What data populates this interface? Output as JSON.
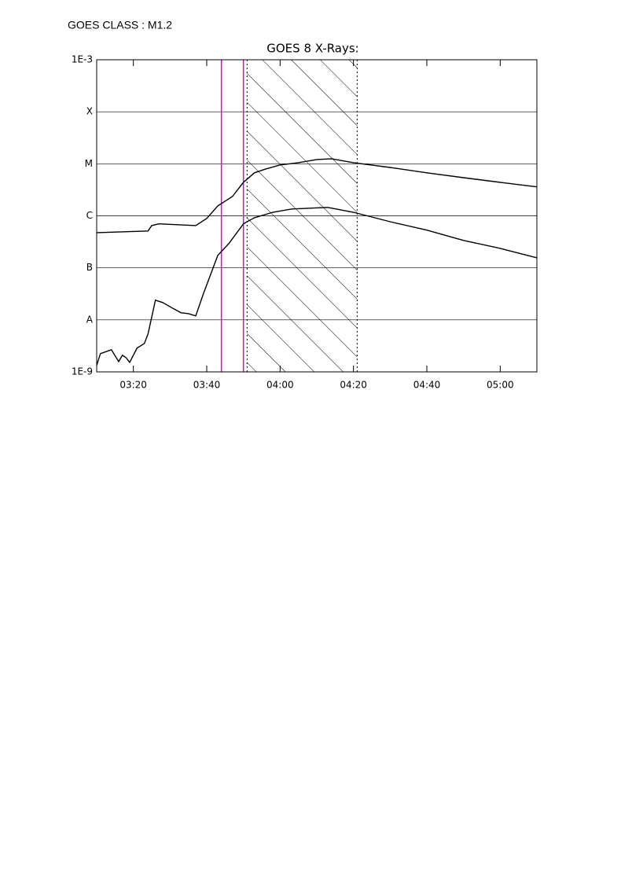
{
  "header": {
    "text": "GOES CLASS : M1.2"
  },
  "chart_data": {
    "type": "line",
    "title": "GOES 8 X-Rays:",
    "log_scale": true,
    "grid": true,
    "xlim": [
      "03:10",
      "05:10"
    ],
    "xticks": [
      "03:20",
      "03:40",
      "04:00",
      "04:20",
      "04:40",
      "05:00"
    ],
    "ylim": [
      1e-09,
      0.001
    ],
    "yticks": [
      {
        "value": 1e-09,
        "label": "1E-9"
      },
      {
        "value": 1e-08,
        "label": "A"
      },
      {
        "value": 1e-07,
        "label": "B"
      },
      {
        "value": 1e-06,
        "label": "C"
      },
      {
        "value": 1e-05,
        "label": "M"
      },
      {
        "value": 0.0001,
        "label": "X"
      },
      {
        "value": 0.001,
        "label": "1E-3"
      }
    ],
    "series": [
      {
        "color": "#000000",
        "x": [
          "03:10",
          "03:24",
          "03:25",
          "03:27",
          "03:37",
          "03:40",
          "03:43",
          "03:47",
          "03:50",
          "03:53",
          "03:56",
          "04:00",
          "04:05",
          "04:10",
          "04:14",
          "04:20",
          "04:30",
          "04:40",
          "04:50",
          "05:00",
          "05:10"
        ],
        "values": [
          4.75e-07,
          5.1e-07,
          6.5e-07,
          7e-07,
          6.5e-07,
          8.9e-07,
          1.55e-06,
          2.35e-06,
          4.4e-06,
          6.7e-06,
          7.9e-06,
          9.5e-06,
          1.05e-05,
          1.21e-05,
          1.25e-05,
          1.05e-05,
          8.5e-06,
          6.7e-06,
          5.4e-06,
          4.4e-06,
          3.6e-06
        ]
      },
      {
        "color": "#000000",
        "x": [
          "03:10",
          "03:11",
          "03:14",
          "03:16",
          "03:17",
          "03:18",
          "03:19",
          "03:21",
          "03:23",
          "03:24",
          "03:26",
          "03:28",
          "03:31",
          "03:33",
          "03:35",
          "03:37",
          "03:39",
          "03:43",
          "03:46",
          "03:50",
          "03:53",
          "03:58",
          "04:03",
          "04:08",
          "04:13",
          "04:20",
          "04:30",
          "04:40",
          "04:50",
          "05:00",
          "05:10"
        ],
        "values": [
          1.33e-09,
          2.24e-09,
          2.67e-09,
          1.58e-09,
          2.09e-09,
          1.88e-09,
          1.53e-09,
          2.86e-09,
          3.52e-09,
          5.35e-09,
          2.39e-08,
          2.15e-08,
          1.63e-08,
          1.37e-08,
          1.32e-08,
          1.19e-08,
          3.04e-08,
          1.73e-07,
          2.92e-07,
          7e-07,
          9.2e-07,
          1.17e-06,
          1.35e-06,
          1.4e-06,
          1.45e-06,
          1.17e-06,
          7.7e-07,
          5.3e-07,
          3.36e-07,
          2.37e-07,
          1.56e-07
        ]
      }
    ],
    "vlines": [
      {
        "x": "03:44",
        "color": "#e000e0"
      },
      {
        "x": "03:50",
        "color": "#e000e0"
      }
    ],
    "shaded": {
      "x": [
        "03:51",
        "04:21"
      ],
      "hatch": true
    }
  }
}
